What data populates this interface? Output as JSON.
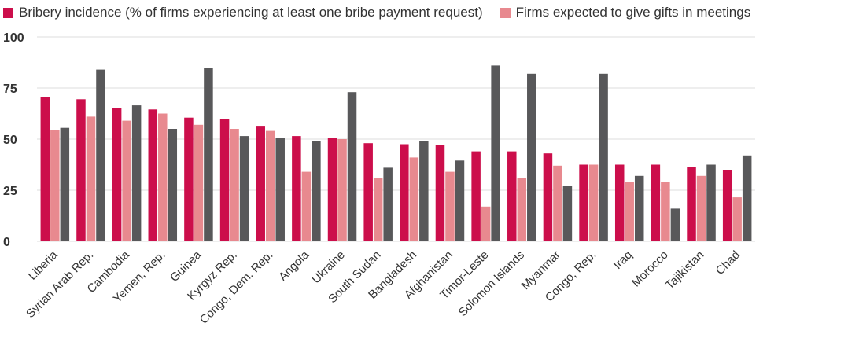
{
  "chart_data": {
    "type": "bar",
    "categories": [
      "Liberia",
      "Syrian Arab Rep.",
      "Cambodia",
      "Yemen, Rep.",
      "Guinea",
      "Kyrgyz Rep.",
      "Congo, Dem. Rep.",
      "Angola",
      "Ukraine",
      "South Sudan",
      "Bangladesh",
      "Afghanistan",
      "Timor-Leste",
      "Solomon Islands",
      "Myanmar",
      "Congo, Rep.",
      "Iraq",
      "Morocco",
      "Tajikistan",
      "Chad"
    ],
    "series": [
      {
        "name": "Bribery incidence (% of firms experiencing at least one bribe payment request)",
        "color": "#cc0e4b",
        "values": [
          70.5,
          69.5,
          65,
          64.5,
          60.5,
          60,
          56.5,
          51.5,
          50.5,
          48,
          47.5,
          47,
          44,
          44,
          43,
          37.5,
          37.5,
          37.5,
          36.5,
          35
        ]
      },
      {
        "name": "Firms expected to give gifts in meetings",
        "color": "#e8898f",
        "values": [
          54.5,
          61,
          59,
          62.5,
          57,
          55,
          54,
          34,
          50,
          31,
          41,
          34,
          17,
          31,
          37,
          37.5,
          29,
          29,
          32,
          21.5
        ]
      },
      {
        "name": "",
        "color": "#58585a",
        "values": [
          55.5,
          84,
          66.5,
          55,
          85,
          51.5,
          50.5,
          49,
          73,
          36,
          49,
          39.5,
          86,
          82,
          27,
          82,
          32,
          16,
          37.5,
          42
        ]
      }
    ],
    "yticks": [
      "0",
      "25",
      "50",
      "75",
      "100"
    ],
    "ylim": [
      0,
      100
    ],
    "grid": true,
    "legend": "top-left"
  }
}
